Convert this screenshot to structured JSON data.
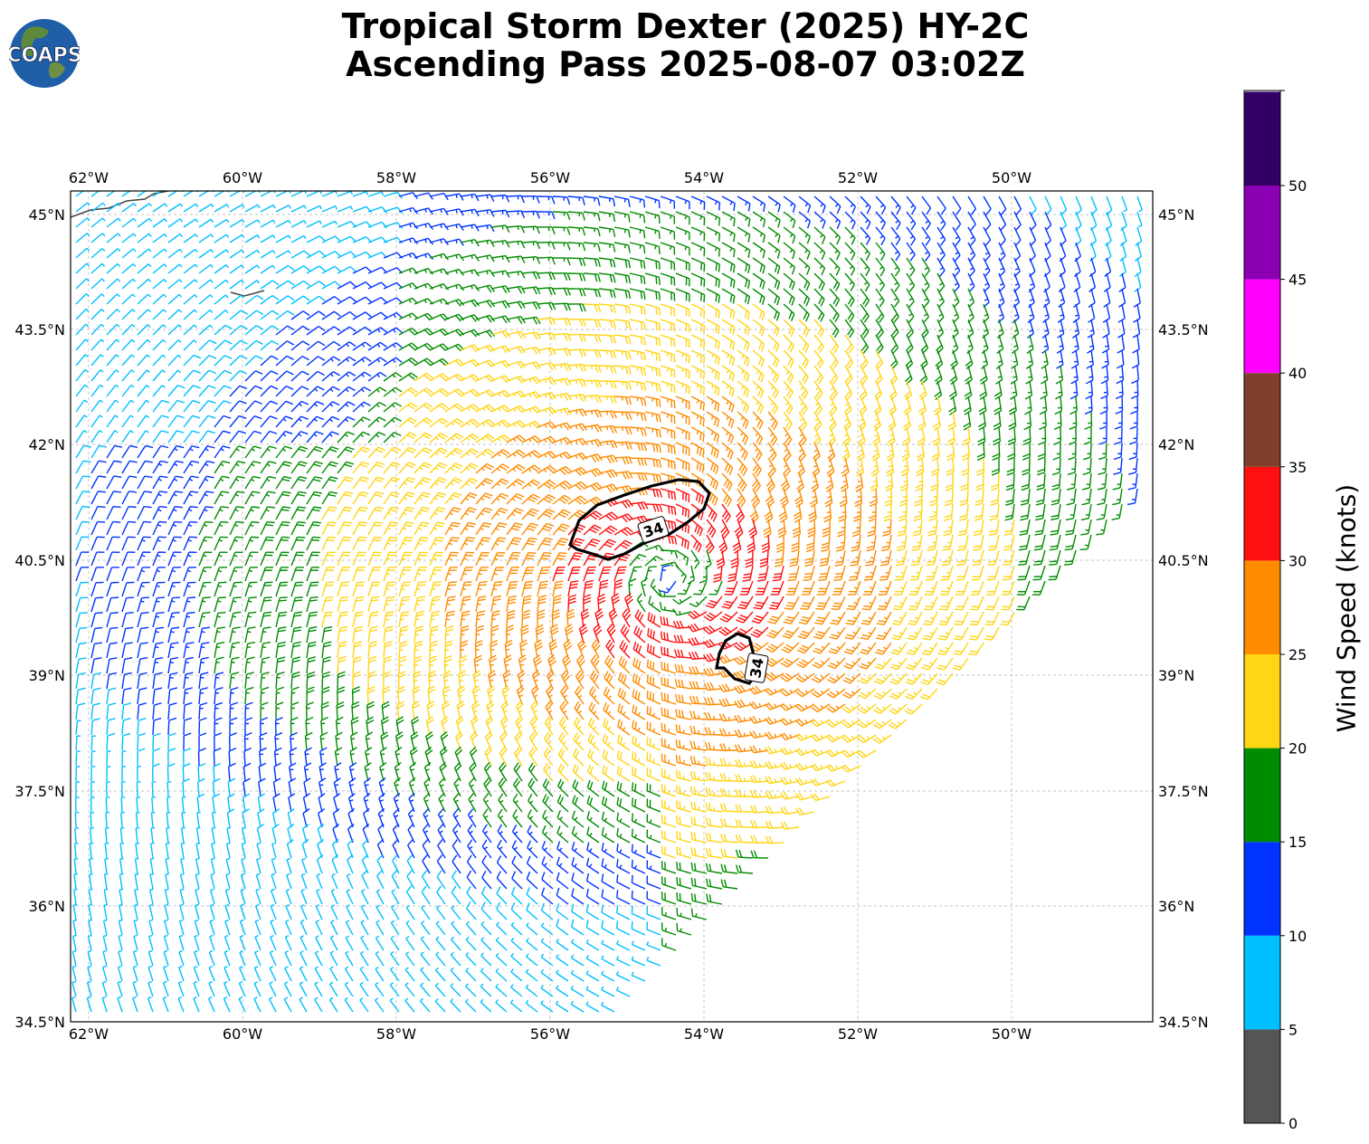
{
  "title_line1": "Tropical Storm Dexter (2025) HY-2C",
  "title_line2": "Ascending Pass 2025-08-07 03:02Z",
  "logo_text": "COAPS",
  "map": {
    "lon_ticks": [
      "62°W",
      "60°W",
      "58°W",
      "56°W",
      "54°W",
      "52°W",
      "50°W"
    ],
    "lat_ticks": [
      "45°N",
      "43.5°N",
      "42°N",
      "40.5°N",
      "39°N",
      "37.5°N",
      "36°N",
      "34.5°N"
    ],
    "contour_labels": [
      "34",
      "34"
    ]
  },
  "colorbar": {
    "title": "Wind Speed (knots)",
    "ticks": [
      "0",
      "5",
      "10",
      "15",
      "20",
      "25",
      "30",
      "35",
      "40",
      "45",
      "50"
    ],
    "colors": [
      "#555555",
      "#00bfff",
      "#0033ff",
      "#008c00",
      "#ffd514",
      "#ff8c00",
      "#ff0f0f",
      "#7f3f2a",
      "#ff00ff",
      "#8c00b4",
      "#330066"
    ]
  },
  "icons": {
    "logo": "globe-logo-icon"
  }
}
